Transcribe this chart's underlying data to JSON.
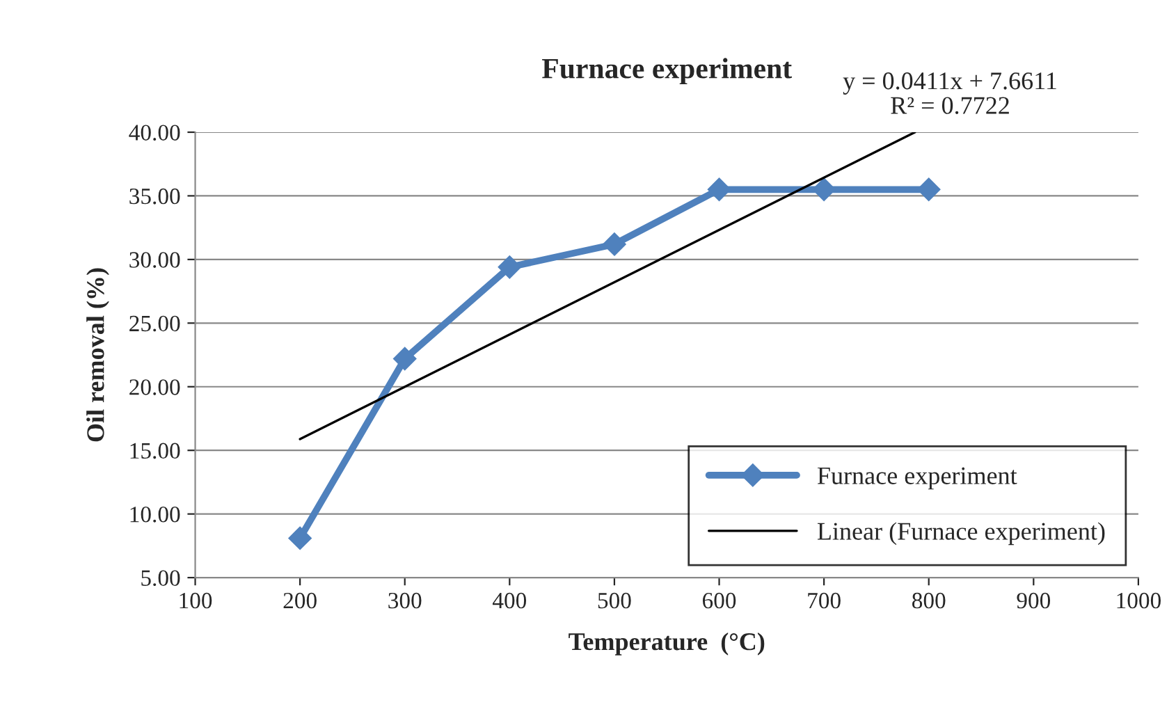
{
  "chart_data": {
    "type": "line",
    "title": "Furnace experiment",
    "xlabel": "Temperature  (°C)",
    "ylabel": "Oil removal (%)",
    "series": [
      {
        "name": "Furnace experiment",
        "color": "#4f81bd",
        "x": [
          200,
          300,
          400,
          500,
          600,
          700,
          800
        ],
        "values": [
          8.1,
          22.2,
          29.4,
          31.2,
          35.5,
          35.5,
          35.5
        ],
        "marker": "diamond"
      },
      {
        "name": "Linear (Furnace experiment)",
        "color": "#000000",
        "x": [
          200,
          786.8
        ],
        "values": [
          15.88,
          40.0
        ],
        "marker": "none"
      }
    ],
    "annotations": [
      "y = 0.0411x + 7.6611\nR² = 0.7722"
    ],
    "xlim": [
      100,
      1000
    ],
    "xticks": [
      100,
      200,
      300,
      400,
      500,
      600,
      700,
      800,
      900,
      1000
    ],
    "ylim": [
      5,
      40
    ],
    "yticks": [
      {
        "value": 5,
        "label": "5.00"
      },
      {
        "value": 10,
        "label": "10.00"
      },
      {
        "value": 15,
        "label": "15.00"
      },
      {
        "value": 20,
        "label": "20.00"
      },
      {
        "value": 25,
        "label": "25.00"
      },
      {
        "value": 30,
        "label": "30.00"
      },
      {
        "value": 35,
        "label": "35.00"
      },
      {
        "value": 40,
        "label": "40.00"
      }
    ],
    "grid": "y",
    "legend": "bottom right"
  }
}
